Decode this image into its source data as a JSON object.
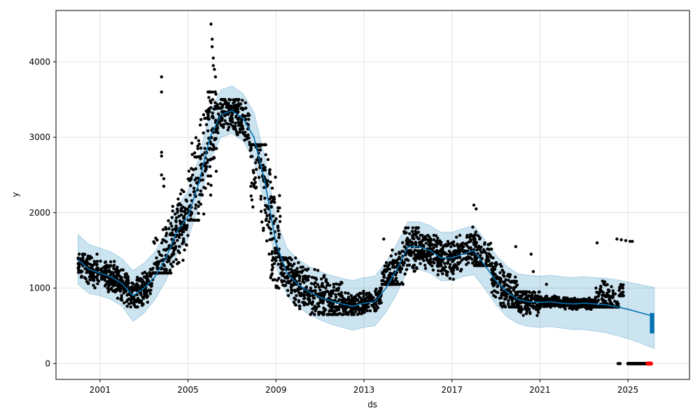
{
  "chart_data": {
    "type": "line",
    "title": "",
    "xlabel": "ds",
    "ylabel": "y",
    "xlim": [
      1999.0,
      2027.8
    ],
    "ylim": [
      -210,
      4680
    ],
    "x_ticks": [
      {
        "value": 2001,
        "label": "2001"
      },
      {
        "value": 2005,
        "label": "2005"
      },
      {
        "value": 2009,
        "label": "2009"
      },
      {
        "value": 2013,
        "label": "2013"
      },
      {
        "value": 2017,
        "label": "2017"
      },
      {
        "value": 2021,
        "label": "2021"
      },
      {
        "value": 2025,
        "label": "2025"
      }
    ],
    "y_ticks": [
      {
        "value": 0,
        "label": "0"
      },
      {
        "value": 1000,
        "label": "1000"
      },
      {
        "value": 2000,
        "label": "2000"
      },
      {
        "value": 3000,
        "label": "3000"
      },
      {
        "value": 4000,
        "label": "4000"
      }
    ],
    "grid": true,
    "colors": {
      "forecast_line": "#0072b2",
      "uncertainty_band": "#0072b2",
      "observed_points": "#000000",
      "highlight_points": "#ff0000"
    },
    "forecast": {
      "x": [
        2000.0,
        2000.5,
        2001.0,
        2001.5,
        2002.0,
        2002.5,
        2003.0,
        2003.5,
        2004.0,
        2004.5,
        2005.0,
        2005.5,
        2006.0,
        2006.5,
        2007.0,
        2007.5,
        2008.0,
        2008.5,
        2009.0,
        2009.5,
        2010.0,
        2010.5,
        2011.0,
        2011.5,
        2012.0,
        2012.5,
        2013.0,
        2013.5,
        2014.0,
        2014.5,
        2015.0,
        2015.5,
        2016.0,
        2016.5,
        2017.0,
        2017.5,
        2018.0,
        2018.5,
        2019.0,
        2019.5,
        2020.0,
        2020.5,
        2021.0,
        2021.5,
        2022.0,
        2022.5,
        2023.0,
        2023.5,
        2024.0,
        2024.5,
        2025.0,
        2025.5,
        2026.0,
        2026.2
      ],
      "yhat": [
        1380,
        1250,
        1200,
        1150,
        1060,
        900,
        1000,
        1150,
        1400,
        1750,
        1950,
        2400,
        3000,
        3300,
        3350,
        3250,
        3000,
        2400,
        1600,
        1200,
        1050,
        950,
        880,
        830,
        790,
        760,
        800,
        820,
        1000,
        1250,
        1550,
        1550,
        1500,
        1400,
        1400,
        1450,
        1500,
        1300,
        1100,
        950,
        850,
        820,
        810,
        820,
        800,
        790,
        800,
        790,
        780,
        750,
        720,
        680,
        640,
        620
      ],
      "lower": [
        1050,
        930,
        900,
        850,
        760,
        560,
        670,
        850,
        1100,
        1450,
        1650,
        2100,
        2700,
        3000,
        3050,
        2950,
        2700,
        2100,
        1300,
        900,
        750,
        650,
        580,
        520,
        480,
        440,
        480,
        500,
        680,
        930,
        1250,
        1250,
        1200,
        1100,
        1100,
        1150,
        1180,
        990,
        780,
        620,
        530,
        490,
        480,
        490,
        470,
        450,
        450,
        430,
        410,
        370,
        330,
        280,
        220,
        200
      ],
      "upper": [
        1710,
        1580,
        1530,
        1480,
        1390,
        1230,
        1330,
        1480,
        1730,
        2080,
        2280,
        2730,
        3330,
        3630,
        3680,
        3580,
        3330,
        2730,
        1930,
        1530,
        1380,
        1290,
        1220,
        1170,
        1130,
        1100,
        1140,
        1160,
        1340,
        1590,
        1880,
        1880,
        1830,
        1740,
        1740,
        1790,
        1830,
        1640,
        1440,
        1290,
        1190,
        1170,
        1160,
        1170,
        1150,
        1140,
        1150,
        1140,
        1130,
        1110,
        1080,
        1050,
        1020,
        1010
      ]
    },
    "observed_clusters": [
      {
        "x0": 2000.0,
        "x1": 2001.8,
        "ymin": 950,
        "ymax": 1450
      },
      {
        "x0": 2001.8,
        "x1": 2003.4,
        "ymin": 750,
        "ymax": 1250
      },
      {
        "x0": 2003.4,
        "x1": 2005.0,
        "ymin": 1200,
        "ymax": 2300
      },
      {
        "x0": 2005.0,
        "x1": 2006.3,
        "ymin": 1900,
        "ymax": 3600
      },
      {
        "x0": 2006.3,
        "x1": 2007.8,
        "ymin": 2900,
        "ymax": 3500
      },
      {
        "x0": 2007.8,
        "x1": 2009.2,
        "ymin": 1000,
        "ymax": 2900
      },
      {
        "x0": 2009.2,
        "x1": 2012.0,
        "ymin": 650,
        "ymax": 1400
      },
      {
        "x0": 2012.0,
        "x1": 2013.8,
        "ymin": 650,
        "ymax": 1000
      },
      {
        "x0": 2013.8,
        "x1": 2015.5,
        "ymin": 1050,
        "ymax": 1800
      },
      {
        "x0": 2015.5,
        "x1": 2017.8,
        "ymin": 1100,
        "ymax": 1700
      },
      {
        "x0": 2017.8,
        "x1": 2018.8,
        "ymin": 1300,
        "ymax": 2000
      },
      {
        "x0": 2018.8,
        "x1": 2020.0,
        "ymin": 750,
        "ymax": 1400
      },
      {
        "x0": 2020.0,
        "x1": 2021.0,
        "ymin": 500,
        "ymax": 950
      },
      {
        "x0": 2021.0,
        "x1": 2023.5,
        "ymin": 720,
        "ymax": 900
      },
      {
        "x0": 2023.5,
        "x1": 2024.6,
        "ymin": 750,
        "ymax": 1450
      },
      {
        "x0": 2024.6,
        "x1": 2024.8,
        "ymin": 900,
        "ymax": 1250
      }
    ],
    "observed_outliers": [
      {
        "x": 2003.8,
        "y": 3800
      },
      {
        "x": 2003.8,
        "y": 3600
      },
      {
        "x": 2003.8,
        "y": 2800
      },
      {
        "x": 2003.8,
        "y": 2750
      },
      {
        "x": 2003.8,
        "y": 2500
      },
      {
        "x": 2003.9,
        "y": 2450
      },
      {
        "x": 2003.9,
        "y": 2350
      },
      {
        "x": 2006.05,
        "y": 4500
      },
      {
        "x": 2006.1,
        "y": 4300
      },
      {
        "x": 2006.1,
        "y": 4200
      },
      {
        "x": 2006.15,
        "y": 4050
      },
      {
        "x": 2006.15,
        "y": 3950
      },
      {
        "x": 2006.2,
        "y": 3900
      },
      {
        "x": 2006.25,
        "y": 3800
      },
      {
        "x": 2013.9,
        "y": 1650
      },
      {
        "x": 2018.0,
        "y": 2100
      },
      {
        "x": 2018.1,
        "y": 2050
      },
      {
        "x": 2019.9,
        "y": 1550
      },
      {
        "x": 2020.6,
        "y": 1450
      },
      {
        "x": 2020.7,
        "y": 1220
      },
      {
        "x": 2021.3,
        "y": 1050
      },
      {
        "x": 2023.6,
        "y": 1600
      },
      {
        "x": 2024.5,
        "y": 1650
      },
      {
        "x": 2024.7,
        "y": 1640
      },
      {
        "x": 2024.9,
        "y": 1630
      },
      {
        "x": 2025.1,
        "y": 1620
      },
      {
        "x": 2025.2,
        "y": 1620
      },
      {
        "x": 2024.55,
        "y": 0
      },
      {
        "x": 2024.6,
        "y": 0
      },
      {
        "x": 2024.65,
        "y": 0
      }
    ],
    "observed_zero_run": {
      "x0": 2025.0,
      "x1": 2025.9,
      "y": 0
    },
    "highlight_points": [
      {
        "x": 2025.9,
        "y": 0
      },
      {
        "x": 2025.95,
        "y": 0
      },
      {
        "x": 2026.0,
        "y": 0
      },
      {
        "x": 2026.05,
        "y": 0
      }
    ],
    "forecast_tail": {
      "x0": 2026.0,
      "x1": 2026.2,
      "ymin": 400,
      "ymax": 670
    }
  }
}
